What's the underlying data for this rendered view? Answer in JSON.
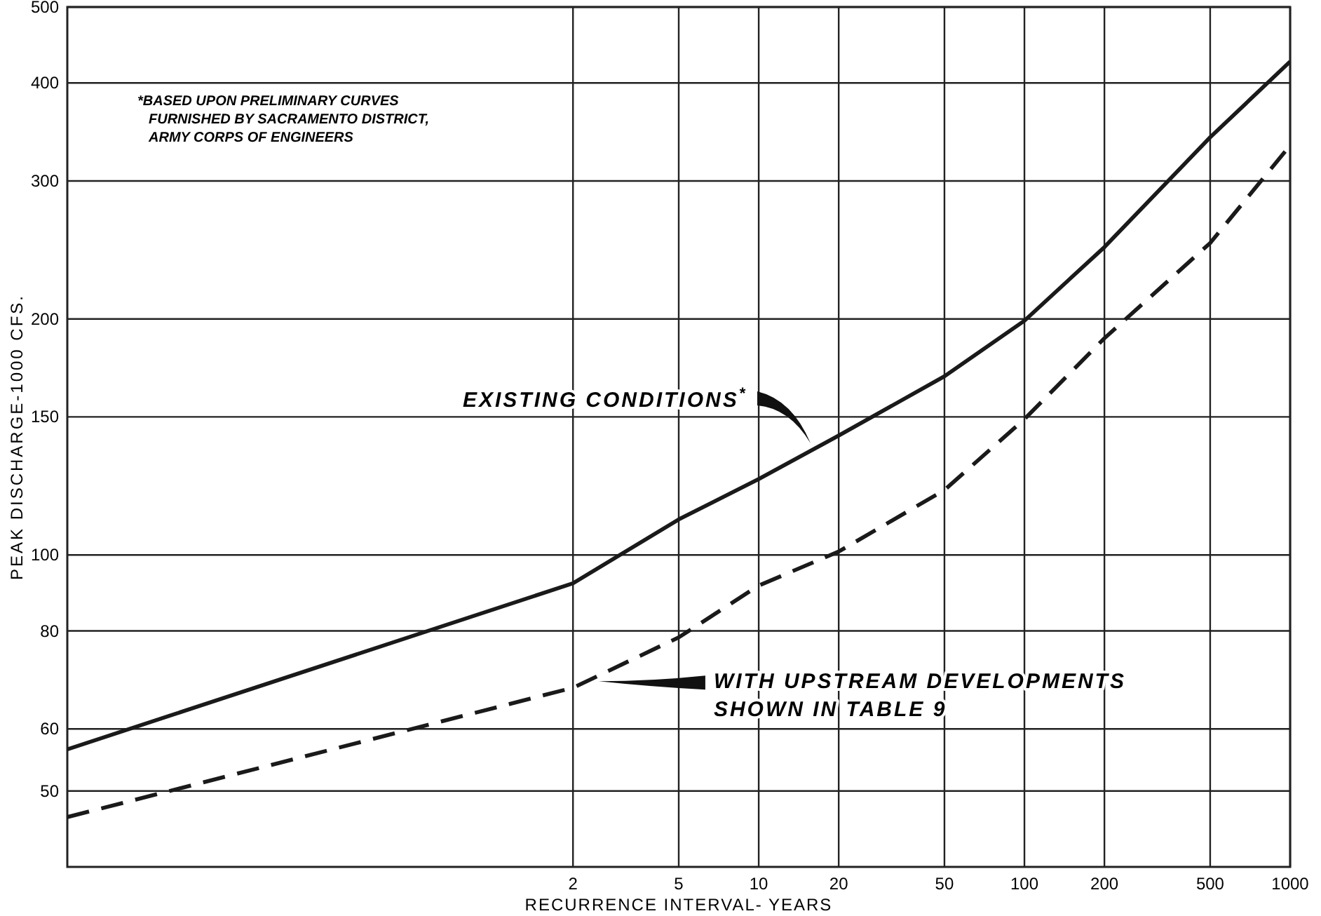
{
  "chart_data": {
    "type": "line",
    "xlabel": "RECURRENCE INTERVAL- YEARS",
    "ylabel": "PEAK DISCHARGE-1000 CFS.",
    "log": "xy",
    "xlim": [
      0.025,
      1000
    ],
    "xticks": [
      2,
      5,
      10,
      20,
      50,
      100,
      200,
      500,
      1000
    ],
    "ylim": [
      40,
      500
    ],
    "yticks": [
      50,
      60,
      80,
      100,
      150,
      200,
      300,
      400,
      500
    ],
    "grid": true,
    "marker": "none",
    "series": [
      {
        "color": "#1a1a1a",
        "line_style": "solid",
        "x": [
          0.025,
          2,
          5,
          10,
          20,
          50,
          100,
          200,
          500,
          1000
        ],
        "values": [
          56.5,
          92,
          111,
          125,
          142,
          169,
          199,
          247,
          341,
          426
        ]
      },
      {
        "color": "#1a1a1a",
        "line_style": "dashed",
        "x": [
          0.025,
          2,
          5,
          10,
          20,
          50,
          100,
          200,
          500,
          1000
        ],
        "values": [
          46.3,
          67.7,
          78.5,
          91.4,
          101,
          121,
          149,
          189,
          250,
          333
        ]
      }
    ],
    "annotations": [
      "*BASED UPON PRELIMINARY CURVES\nFURNISHED BY SACRAMENTO DISTRICT,\nARMY CORPS OF ENGINEERS",
      "EXISTING CONDITIONS$^{*}$",
      {
        "text": "WITH UPSTREAM DEVELOPMENTS\nSHOWN IN TABLE 9",
        "x": 2.5,
        "y": 69
      }
    ]
  }
}
